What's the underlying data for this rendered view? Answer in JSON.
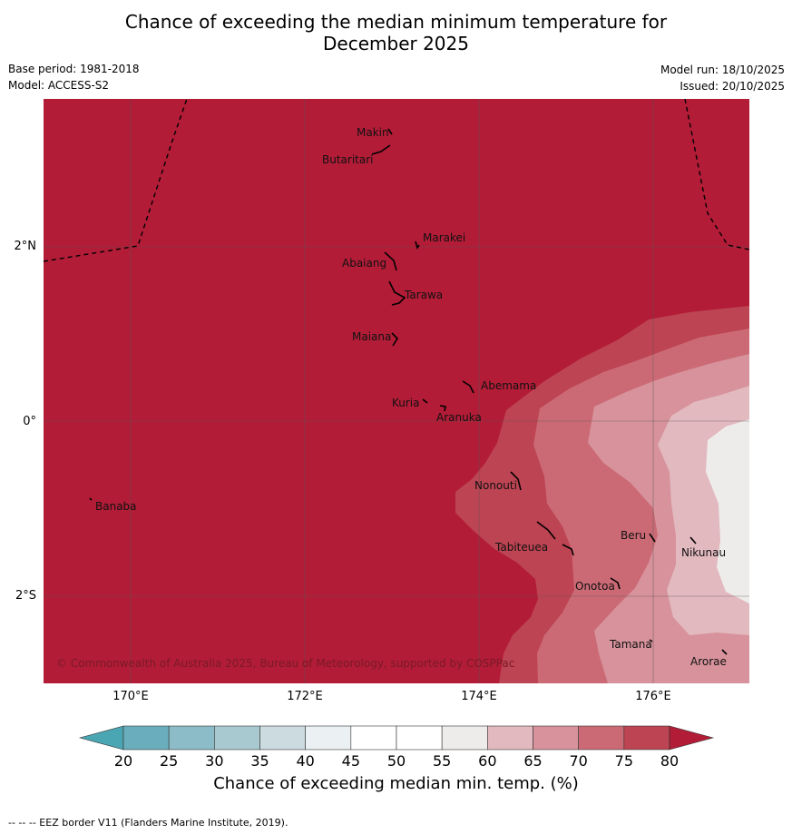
{
  "title_line1": "Chance of exceeding the median minimum temperature for",
  "title_line2": "December 2025",
  "base_period": "Base period: 1981-2018",
  "model": "Model: ACCESS-S2",
  "model_run": "Model run: 18/10/2025",
  "issued": "Issued: 20/10/2025",
  "lat_ticks": [
    "2°N",
    "0°",
    "2°S"
  ],
  "lon_ticks": [
    "170°E",
    "172°E",
    "174°E",
    "176°E"
  ],
  "islands": [
    "Makin",
    "Butaritari",
    "Marakei",
    "Abaiang",
    "Tarawa",
    "Maiana",
    "Abemama",
    "Kuria",
    "Aranuka",
    "Banaba",
    "Nonouti",
    "Beru",
    "Nikunau",
    "Tabiteuea",
    "Onotoa",
    "Tamana",
    "Arorae"
  ],
  "copyright": "© Commonwealth of Australia 2025, Bureau of Meteorology, supported by COSPPac",
  "colorbar": {
    "ticks": [
      "20",
      "25",
      "30",
      "35",
      "40",
      "45",
      "50",
      "55",
      "60",
      "65",
      "70",
      "75",
      "80"
    ],
    "label": "Chance of exceeding median min. temp. (%)",
    "colors": [
      "#6aaebd",
      "#8bbcc8",
      "#a9c9d1",
      "#ccdbdf",
      "#ebf0f2",
      "#ffffff",
      "#ffffff",
      "#eeeceb",
      "#e2b9bf",
      "#d7929b",
      "#cb6a75",
      "#bd4452"
    ],
    "under_color": "#4aa6b3",
    "over_color": "#b21c37"
  },
  "footnote": "--  --  -- EEZ border V11 (Flanders Marine Institute, 2019)."
}
